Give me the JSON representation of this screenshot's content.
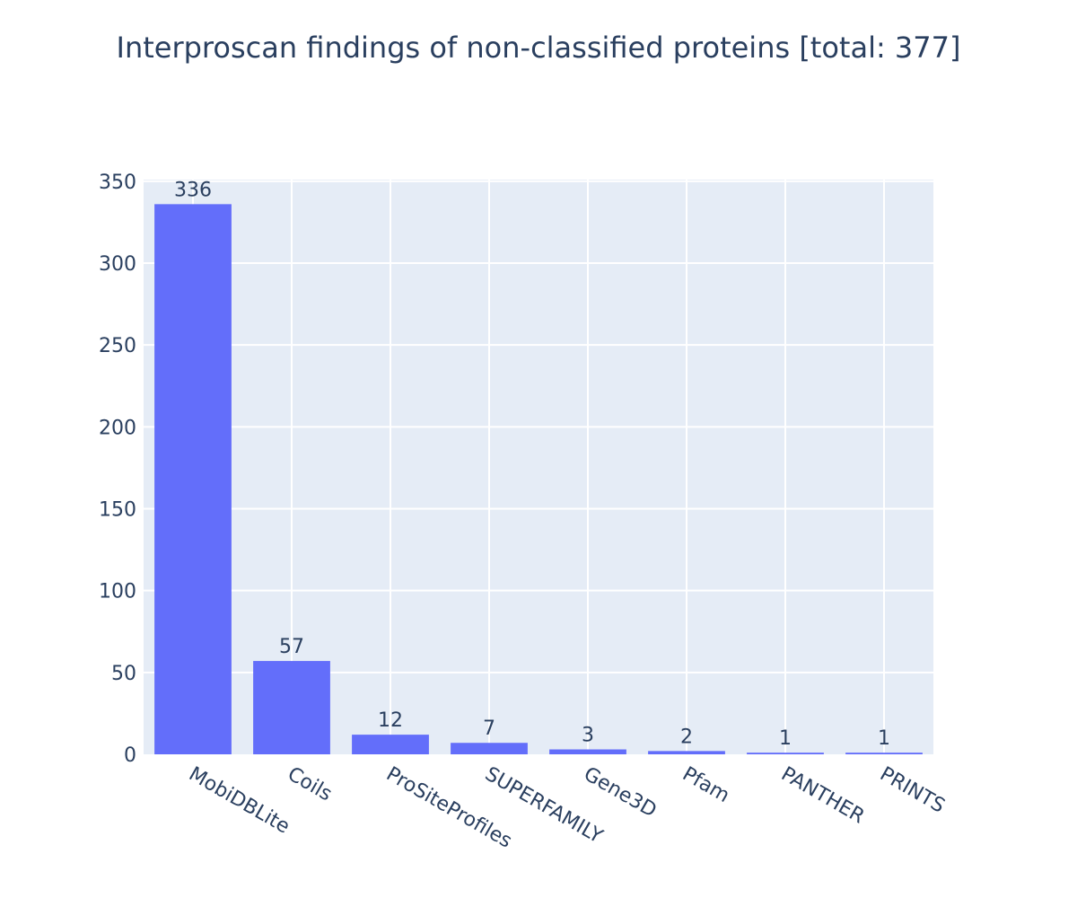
{
  "chart_data": {
    "type": "bar",
    "title": "Interproscan findings of non-classified proteins [total: 377]",
    "xlabel": "",
    "ylabel": "",
    "categories": [
      "MobiDBLite",
      "Coils",
      "ProSiteProfiles",
      "SUPERFAMILY",
      "Gene3D",
      "Pfam",
      "PANTHER",
      "PRINTS"
    ],
    "values": [
      336,
      57,
      12,
      7,
      3,
      2,
      1,
      1
    ],
    "ylim": [
      0,
      351
    ],
    "yticks": [
      0,
      50,
      100,
      150,
      200,
      250,
      300,
      350
    ],
    "grid": true,
    "legend": "none",
    "colors": {
      "bar": "#636efa",
      "plot_bg": "#e5ecf6",
      "grid": "#ffffff",
      "text": "#2a3f5f"
    }
  }
}
